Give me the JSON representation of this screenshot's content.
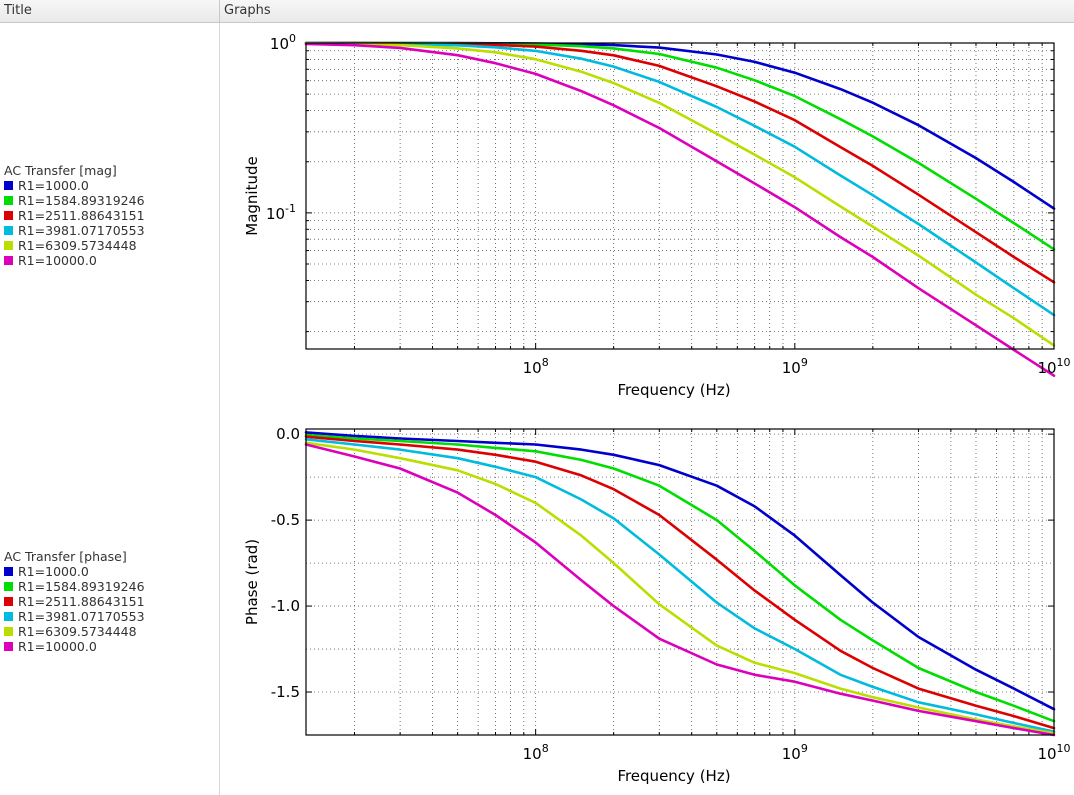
{
  "header": {
    "title_col": "Title",
    "graphs_col": "Graphs"
  },
  "colors": {
    "series": [
      "#0000cc",
      "#00dd00",
      "#dd0000",
      "#00bbdd",
      "#bbdd00",
      "#dd00bb"
    ]
  },
  "legends": [
    {
      "title": "AC Transfer [mag]",
      "items": [
        "R1=1000.0",
        "R1=1584.89319246",
        "R1=2511.88643151",
        "R1=3981.07170553",
        "R1=6309.5734448",
        "R1=10000.0"
      ]
    },
    {
      "title": "AC Transfer [phase]",
      "items": [
        "R1=1000.0",
        "R1=1584.89319246",
        "R1=2511.88643151",
        "R1=3981.07170553",
        "R1=6309.5734448",
        "R1=10000.0"
      ]
    }
  ],
  "chart_data": [
    {
      "type": "line",
      "title": "",
      "xlabel": "Frequency (Hz)",
      "ylabel": "Magnitude",
      "xscale": "log",
      "yscale": "log",
      "xlim": [
        13000000,
        10000000000
      ],
      "ylim": [
        0.0158,
        1.0
      ],
      "grid": true,
      "x_ticks": [
        {
          "base": "10",
          "exp": "8",
          "value": 100000000
        },
        {
          "base": "10",
          "exp": "9",
          "value": 1000000000
        },
        {
          "base": "10",
          "exp": "10",
          "value": 10000000000
        }
      ],
      "y_ticks": [
        {
          "base": "10",
          "exp": "0",
          "value": 1
        },
        {
          "base": "10",
          "exp": "-1",
          "value": 0.1
        }
      ],
      "x": [
        13000000.0,
        20000000.0,
        30000000.0,
        50000000.0,
        70000000.0,
        100000000.0,
        150000000.0,
        200000000.0,
        300000000.0,
        500000000.0,
        700000000.0,
        1000000000.0,
        1500000000.0,
        2000000000.0,
        3000000000.0,
        5000000000.0,
        7000000000.0,
        10000000000.0
      ],
      "series": [
        {
          "name": "R1=1000.0",
          "values": [
            1.0,
            1.0,
            0.999,
            0.998,
            0.996,
            0.993,
            0.984,
            0.972,
            0.939,
            0.856,
            0.774,
            0.669,
            0.535,
            0.445,
            0.328,
            0.21,
            0.152,
            0.106
          ]
        },
        {
          "name": "R1=1584.89319246",
          "values": [
            1.0,
            0.999,
            0.998,
            0.995,
            0.99,
            0.98,
            0.957,
            0.93,
            0.862,
            0.715,
            0.603,
            0.487,
            0.356,
            0.282,
            0.197,
            0.121,
            0.087,
            0.061
          ]
        },
        {
          "name": "R1=2511.88643151",
          "values": [
            0.999,
            0.998,
            0.995,
            0.987,
            0.975,
            0.952,
            0.9,
            0.846,
            0.733,
            0.556,
            0.452,
            0.351,
            0.244,
            0.189,
            0.128,
            0.077,
            0.055,
            0.039
          ]
        },
        {
          "name": "R1=3981.07170553",
          "values": [
            0.998,
            0.995,
            0.988,
            0.969,
            0.944,
            0.898,
            0.808,
            0.726,
            0.59,
            0.42,
            0.325,
            0.245,
            0.166,
            0.127,
            0.086,
            0.051,
            0.036,
            0.025
          ]
        },
        {
          "name": "R1=6309.5734448",
          "values": [
            0.995,
            0.988,
            0.972,
            0.93,
            0.881,
            0.803,
            0.678,
            0.581,
            0.444,
            0.292,
            0.22,
            0.162,
            0.109,
            0.083,
            0.056,
            0.033,
            0.024,
            0.0166
          ]
        },
        {
          "name": "R1=10000.0",
          "values": [
            0.987,
            0.97,
            0.936,
            0.848,
            0.76,
            0.658,
            0.521,
            0.43,
            0.316,
            0.201,
            0.149,
            0.108,
            0.072,
            0.055,
            0.036,
            0.0218,
            0.0156,
            0.011
          ]
        }
      ]
    },
    {
      "type": "line",
      "title": "",
      "xlabel": "Frequency (Hz)",
      "ylabel": "Phase (rad)",
      "xscale": "log",
      "yscale": "linear",
      "xlim": [
        13000000,
        10000000000
      ],
      "ylim": [
        -1.75,
        0.03
      ],
      "grid": true,
      "x_ticks": [
        {
          "base": "10",
          "exp": "8",
          "value": 100000000
        },
        {
          "base": "10",
          "exp": "9",
          "value": 1000000000
        },
        {
          "base": "10",
          "exp": "10",
          "value": 10000000000
        }
      ],
      "y_ticks": [
        {
          "label": "0.0",
          "value": 0.0
        },
        {
          "label": "-0.5",
          "value": -0.5
        },
        {
          "label": "-1.0",
          "value": -1.0
        },
        {
          "label": "-1.5",
          "value": -1.5
        }
      ],
      "x": [
        13000000.0,
        20000000.0,
        30000000.0,
        50000000.0,
        70000000.0,
        100000000.0,
        150000000.0,
        200000000.0,
        300000000.0,
        500000000.0,
        700000000.0,
        1000000000.0,
        1500000000.0,
        2000000000.0,
        3000000000.0,
        5000000000.0,
        7000000000.0,
        10000000000.0
      ],
      "series": [
        {
          "name": "R1=1000.0",
          "values": [
            0.01,
            -0.01,
            -0.025,
            -0.04,
            -0.05,
            -0.06,
            -0.09,
            -0.12,
            -0.18,
            -0.3,
            -0.42,
            -0.59,
            -0.82,
            -0.98,
            -1.18,
            -1.37,
            -1.48,
            -1.6
          ]
        },
        {
          "name": "R1=1584.89319246",
          "values": [
            -0.005,
            -0.025,
            -0.04,
            -0.06,
            -0.08,
            -0.1,
            -0.15,
            -0.2,
            -0.3,
            -0.5,
            -0.68,
            -0.88,
            -1.08,
            -1.2,
            -1.36,
            -1.5,
            -1.58,
            -1.67
          ]
        },
        {
          "name": "R1=2511.88643151",
          "values": [
            -0.015,
            -0.04,
            -0.06,
            -0.09,
            -0.12,
            -0.16,
            -0.24,
            -0.32,
            -0.47,
            -0.73,
            -0.91,
            -1.08,
            -1.26,
            -1.36,
            -1.48,
            -1.58,
            -1.64,
            -1.71
          ]
        },
        {
          "name": "R1=3981.07170553",
          "values": [
            -0.03,
            -0.06,
            -0.09,
            -0.14,
            -0.19,
            -0.25,
            -0.38,
            -0.49,
            -0.7,
            -0.98,
            -1.13,
            -1.25,
            -1.4,
            -1.47,
            -1.56,
            -1.63,
            -1.68,
            -1.73
          ]
        },
        {
          "name": "R1=6309.5734448",
          "values": [
            -0.05,
            -0.09,
            -0.14,
            -0.21,
            -0.29,
            -0.4,
            -0.59,
            -0.75,
            -0.99,
            -1.23,
            -1.33,
            -1.39,
            -1.48,
            -1.53,
            -1.59,
            -1.66,
            -1.7,
            -1.74
          ]
        },
        {
          "name": "R1=10000.0",
          "values": [
            -0.06,
            -0.13,
            -0.2,
            -0.34,
            -0.47,
            -0.63,
            -0.85,
            -1.0,
            -1.19,
            -1.34,
            -1.4,
            -1.44,
            -1.51,
            -1.55,
            -1.61,
            -1.67,
            -1.71,
            -1.75
          ]
        }
      ]
    }
  ]
}
